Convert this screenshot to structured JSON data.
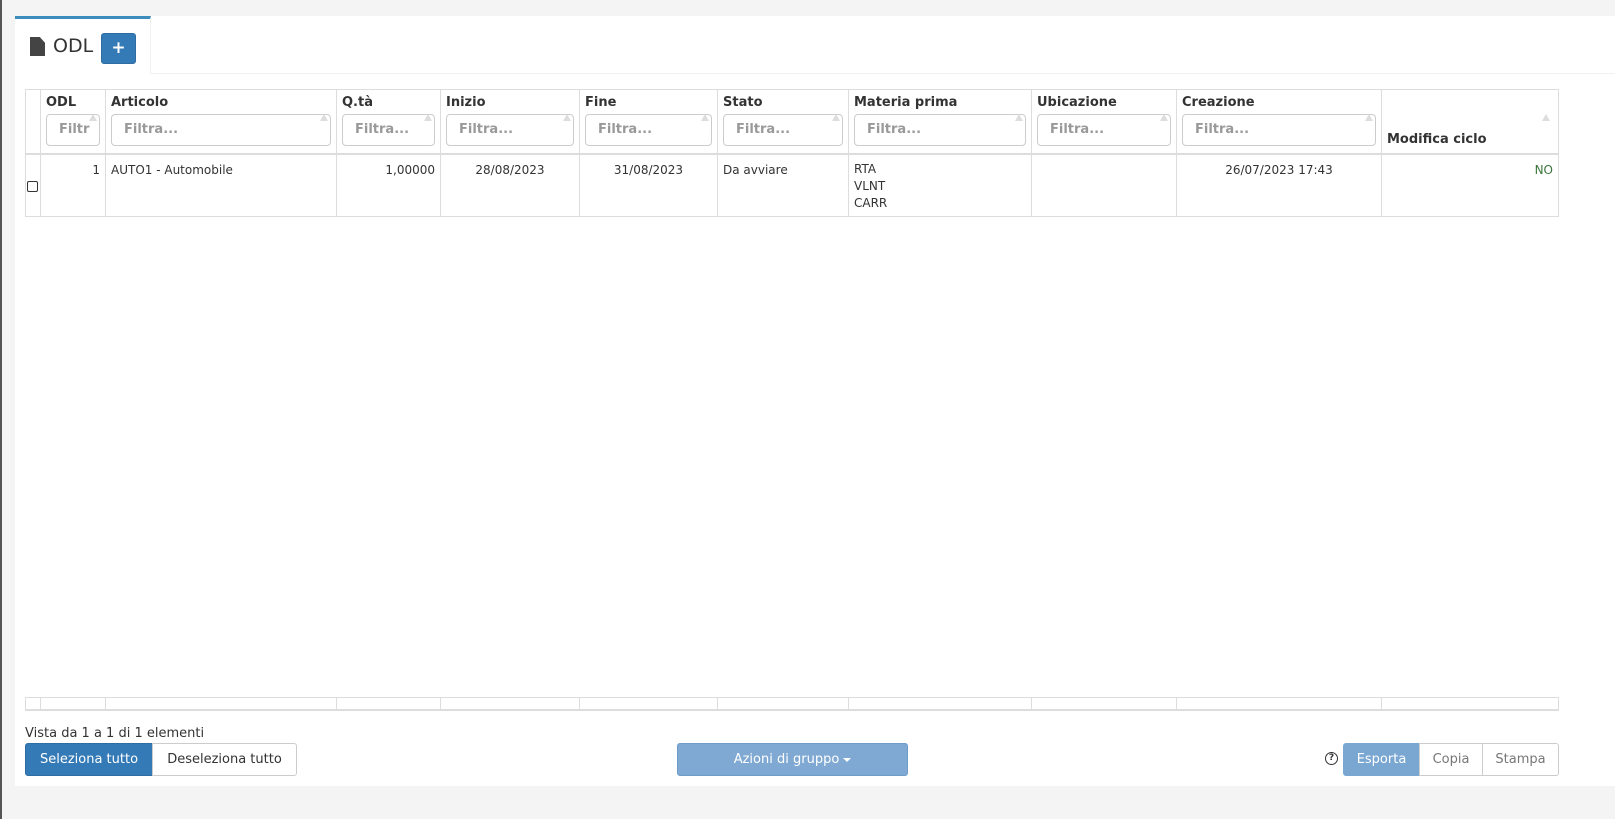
{
  "tab": {
    "title": "ODL",
    "icon": "file-icon",
    "add_label": "+"
  },
  "columns": [
    "ODL",
    "Articolo",
    "Q.tà",
    "Inizio",
    "Fine",
    "Stato",
    "Materia prima",
    "Ubicazione",
    "Creazione",
    "Modifica ciclo"
  ],
  "filter_placeholders": [
    "Filtr",
    "Filtra...",
    "Filtra...",
    "Filtra...",
    "Filtra...",
    "Filtra...",
    "Filtra...",
    "Filtra...",
    "Filtra..."
  ],
  "rows": [
    {
      "odl": "1",
      "articolo": "AUTO1 - Automobile",
      "qta": "1,00000",
      "inizio": "28/08/2023",
      "fine": "31/08/2023",
      "stato": "Da avviare",
      "materia": [
        "RTA",
        "VLNT",
        "CARR"
      ],
      "ubicazione": "",
      "creazione": "26/07/2023 17:43",
      "modifica": "NO"
    }
  ],
  "info": "Vista da 1 a 1 di 1 elementi",
  "buttons": {
    "select_all": "Seleziona tutto",
    "deselect_all": "Deseleziona tutto",
    "group_actions": "Azioni di gruppo",
    "export": "Esporta",
    "copy": "Copia",
    "print": "Stampa",
    "help": "?"
  },
  "colors": {
    "primary": "#337ab7",
    "accent": "#3c8dbc",
    "no": "#3c763d"
  }
}
